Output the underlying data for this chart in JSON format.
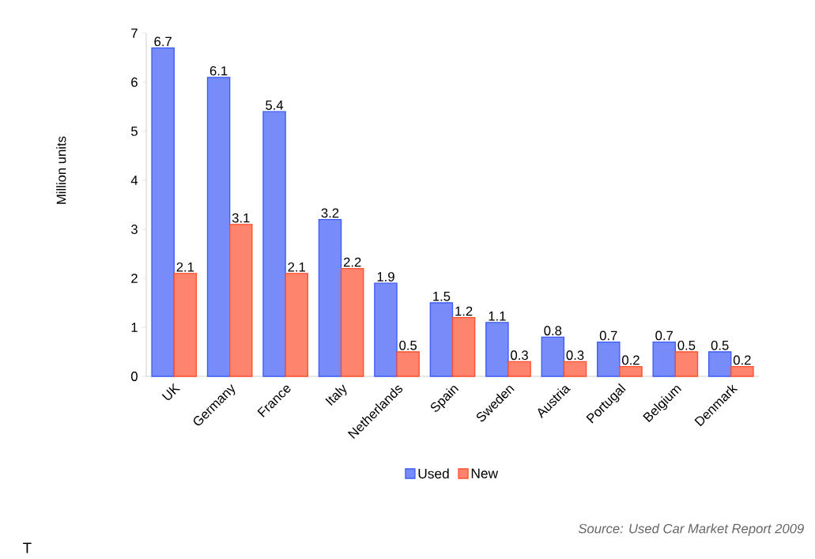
{
  "chart_data": {
    "type": "bar",
    "categories": [
      "UK",
      "Germany",
      "France",
      "Italy",
      "Netherlands",
      "Spain",
      "Sweden",
      "Austria",
      "Portugal",
      "Belgium",
      "Denmark"
    ],
    "series": [
      {
        "name": "Used",
        "color": "#3d5bf5",
        "values": [
          6.7,
          6.1,
          5.4,
          3.2,
          1.9,
          1.5,
          1.1,
          0.8,
          0.7,
          0.7,
          0.5
        ]
      },
      {
        "name": "New",
        "color": "#ff4f2e",
        "values": [
          2.1,
          3.1,
          2.1,
          2.2,
          0.5,
          1.2,
          0.3,
          0.3,
          0.2,
          0.5,
          0.2
        ]
      }
    ],
    "ylabel": "Million units",
    "ylim": [
      0,
      7
    ],
    "yticks": [
      0,
      1,
      2,
      3,
      4,
      5,
      6,
      7
    ],
    "data_labels": true,
    "legend": "bottom",
    "annotations": [
      "Source: Used Car Market Report 2009",
      "T"
    ]
  }
}
